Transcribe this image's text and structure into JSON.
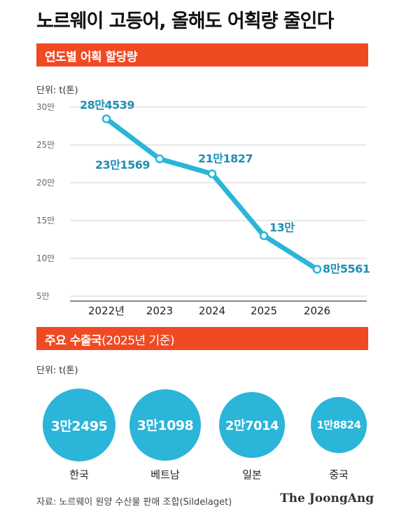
{
  "title": "노르웨이 고등어, 올해도 어획량 줄인다",
  "section1": {
    "title": "연도별 어획 할당량",
    "unit": "단위: t(톤)"
  },
  "chart_data": {
    "type": "line",
    "x": [
      "2022년",
      "2023",
      "2024",
      "2025",
      "2026"
    ],
    "values": [
      284539,
      231569,
      211827,
      130000,
      85561
    ],
    "data_labels": [
      "28만4539",
      "23만1569",
      "21만1827",
      "13만",
      "8만5561"
    ],
    "y_ticks": [
      {
        "value": 50000,
        "label": "5만"
      },
      {
        "value": 100000,
        "label": "10만"
      },
      {
        "value": 150000,
        "label": "15만"
      },
      {
        "value": 200000,
        "label": "20만"
      },
      {
        "value": 250000,
        "label": "25만"
      },
      {
        "value": 300000,
        "label": "30만"
      }
    ],
    "ylim": [
      50000,
      300000
    ],
    "grid": true,
    "color": "#2ab5d9"
  },
  "section2": {
    "title": "주요 수출국",
    "note": "(2025년 기준)",
    "unit": "단위: t(톤)",
    "countries": [
      {
        "name": "한국",
        "value": 32495,
        "label": "3만2495"
      },
      {
        "name": "베트남",
        "value": 31098,
        "label": "3만1098"
      },
      {
        "name": "일본",
        "value": 27014,
        "label": "2만7014"
      },
      {
        "name": "중국",
        "value": 18824,
        "label": "1만8824"
      }
    ],
    "color": "#2ab5d9"
  },
  "source": "자료: 노르웨이 원양 수산물 판매 조합(Sildelaget)",
  "logo": "The JoongAng"
}
